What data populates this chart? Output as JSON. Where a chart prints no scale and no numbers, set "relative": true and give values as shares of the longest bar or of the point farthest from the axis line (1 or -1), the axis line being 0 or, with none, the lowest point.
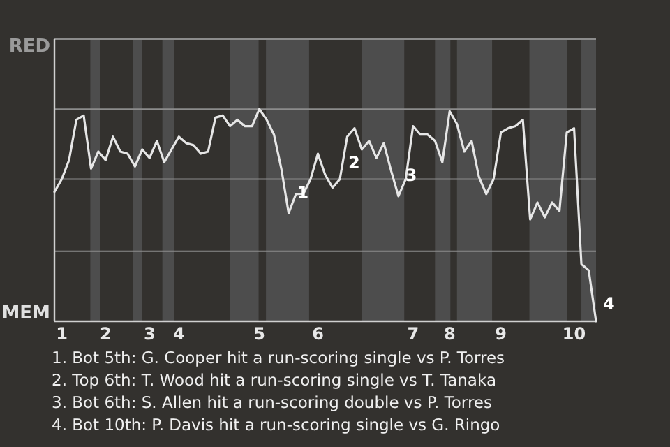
{
  "chart_data": {
    "type": "line",
    "relative": true,
    "categories": [
      null,
      "1",
      null,
      null,
      null,
      null,
      null,
      "2",
      null,
      null,
      null,
      null,
      null,
      "3",
      null,
      null,
      null,
      "4",
      null,
      null,
      null,
      null,
      null,
      null,
      null,
      null,
      null,
      null,
      "5",
      null,
      null,
      null,
      null,
      null,
      null,
      null,
      "6",
      null,
      null,
      null,
      null,
      null,
      null,
      null,
      null,
      null,
      null,
      null,
      null,
      "7",
      null,
      null,
      null,
      null,
      "8",
      null,
      null,
      null,
      null,
      null,
      null,
      "9",
      null,
      null,
      null,
      null,
      null,
      null,
      null,
      null,
      null,
      "10",
      null,
      null,
      null
    ],
    "series": [
      {
        "color": "#e6e6e6",
        "values": [
          0.61,
          0.67,
          0.76,
          0.95,
          0.97,
          0.72,
          0.8,
          0.76,
          0.87,
          0.8,
          0.79,
          0.73,
          0.81,
          0.77,
          0.85,
          0.75,
          0.81,
          0.87,
          0.84,
          0.83,
          0.79,
          0.8,
          0.96,
          0.97,
          0.92,
          0.95,
          0.92,
          0.92,
          1,
          0.95,
          0.88,
          0.72,
          0.51,
          0.6,
          0.6,
          0.67,
          0.79,
          0.69,
          0.63,
          0.67,
          0.87,
          0.91,
          0.81,
          0.85,
          0.77,
          0.84,
          0.71,
          0.59,
          0.67,
          0.92,
          0.88,
          0.88,
          0.85,
          0.75,
          0.99,
          0.93,
          0.8,
          0.85,
          0.68,
          0.6,
          0.67,
          0.89,
          0.91,
          0.92,
          0.95,
          0.48,
          0.56,
          0.49,
          0.56,
          0.52,
          0.89,
          0.91,
          0.27,
          0.24,
          0
        ]
      }
    ],
    "marker": "none",
    "line_style": "solid",
    "ref_lines": [
      {
        "axis": "y",
        "value": 0.33,
        "color": "#8c8c8c"
      },
      {
        "axis": "y",
        "value": 0.67,
        "color": "#8c8c8c"
      },
      {
        "axis": "y",
        "value": 1,
        "color": "#8c8c8c"
      },
      {
        "axis": "y",
        "value": 1.33,
        "color": "#8c8c8c"
      }
    ],
    "annotations": [
      "RED",
      "MEM",
      "1",
      "2",
      "3",
      "4",
      "1. Bot 5th: G. Cooper hit a run-scoring single vs P. Torres",
      "2. Top 6th: T. Wood hit a run-scoring single vs T. Tanaka",
      "3. Bot 6th: S. Allen hit a run-scoring double vs P. Torres",
      "4. Bot 10th: P. Davis hit a run-scoring single vs G. Ringo"
    ]
  }
}
